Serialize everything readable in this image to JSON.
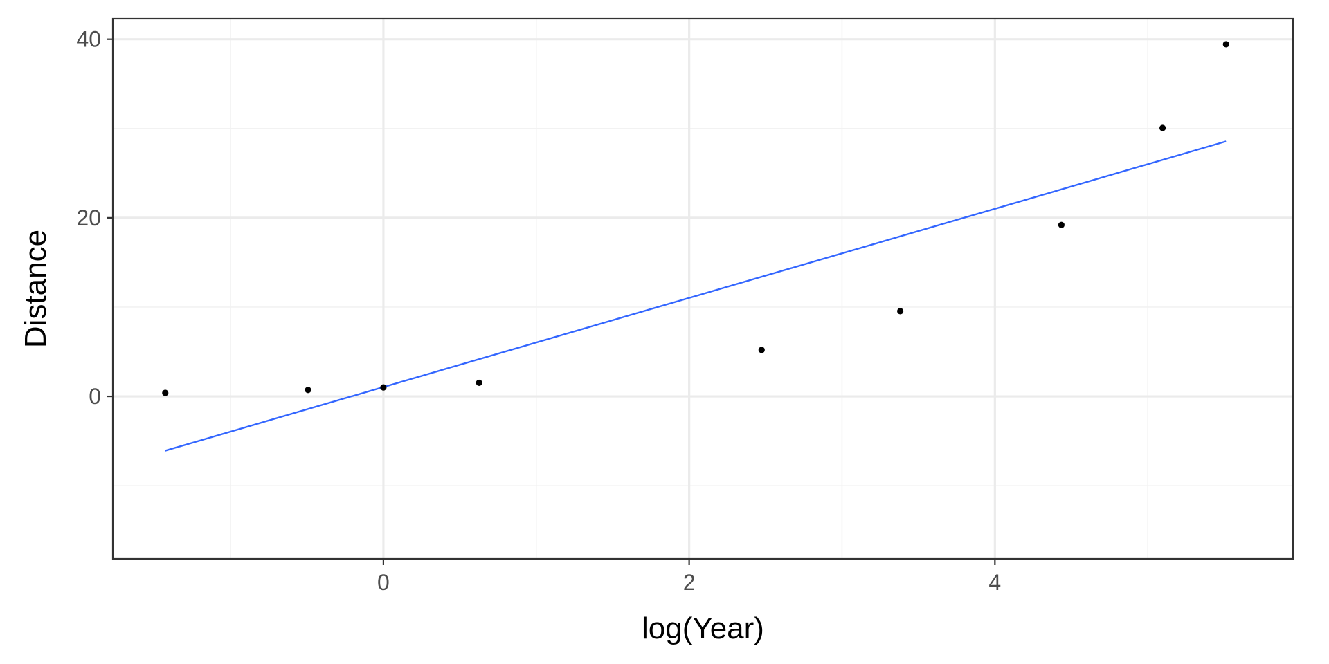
{
  "chart_data": {
    "type": "scatter",
    "title": "",
    "xlabel": "log(Year)",
    "ylabel": "Distance",
    "xlim": [
      -1.77,
      5.95
    ],
    "ylim": [
      -18.2,
      42.3
    ],
    "x_major_ticks": [
      0,
      2,
      4
    ],
    "x_minor_ticks": [
      -1,
      1,
      3,
      5
    ],
    "y_major_ticks": [
      0,
      20,
      40
    ],
    "y_minor_ticks": [
      -10,
      10,
      30
    ],
    "x_tick_labels": [
      "0",
      "2",
      "4"
    ],
    "y_tick_labels": [
      "0",
      "20",
      "40"
    ],
    "grid": true,
    "legend": "none",
    "series": [
      {
        "values": [
          {
            "x": -1.427,
            "y": 0.39
          },
          {
            "x": -0.493,
            "y": 0.72
          },
          {
            "x": 0.0,
            "y": 1.0
          },
          {
            "x": 0.626,
            "y": 1.52
          },
          {
            "x": 2.474,
            "y": 5.2
          },
          {
            "x": 3.381,
            "y": 9.54
          },
          {
            "x": 4.435,
            "y": 19.2
          },
          {
            "x": 5.097,
            "y": 30.06
          },
          {
            "x": 5.512,
            "y": 39.44
          }
        ]
      }
    ],
    "fit_line": {
      "method": "linear",
      "x": [
        -1.427,
        5.512
      ],
      "y": [
        -6.08,
        28.56
      ]
    },
    "colors": {
      "points": "#000000",
      "fit_line": "#3366FF",
      "panel_border": "#333333",
      "grid_major": "#EBEBEB",
      "grid_minor": "#F2F2F2"
    }
  }
}
